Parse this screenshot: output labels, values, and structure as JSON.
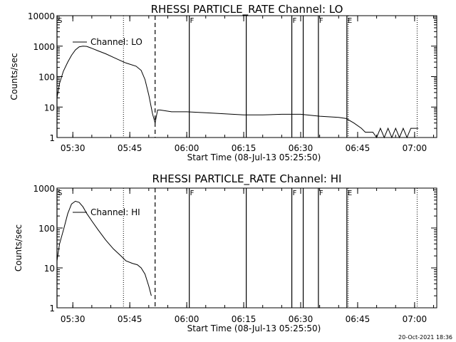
{
  "footer_stamp": "20-Oct-2021 18:36",
  "chart_data": [
    {
      "type": "line",
      "title": "RHESSI PARTICLE_RATE Channel: LO",
      "xlabel": "Start Time (08-Jul-13 05:25:50)",
      "ylabel": "Counts/sec",
      "y_scale": "log",
      "xlim": [
        "05:25:50",
        "07:05:50"
      ],
      "ylim": [
        1,
        10000
      ],
      "x_ticks": [
        "05:30",
        "05:45",
        "06:00",
        "06:15",
        "06:30",
        "06:45",
        "07:00"
      ],
      "y_ticks": [
        "1",
        "10",
        "100",
        "1000",
        "10000"
      ],
      "legend": "Channel: LO",
      "legend_position": "upper-left",
      "event_markers": [
        {
          "label": "S",
          "time": "05:25:50",
          "style": "solid"
        },
        {
          "label": "",
          "time": "05:51:40",
          "style": "dashed"
        },
        {
          "label": "F",
          "time": "06:00:40",
          "style": "solid"
        },
        {
          "label": "",
          "time": "06:15:40",
          "style": "solid"
        },
        {
          "label": "F",
          "time": "06:27:40",
          "style": "solid"
        },
        {
          "label": "",
          "time": "06:30:40",
          "style": "solid"
        },
        {
          "label": "F",
          "time": "06:34:40",
          "style": "solid"
        },
        {
          "label": "E",
          "time": "06:42:10",
          "style": "solid"
        }
      ],
      "dotted_lines": [
        "05:43:20",
        "06:42:30",
        "07:00:40"
      ],
      "series": [
        {
          "name": "Channel: LO",
          "points": [
            [
              "05:25:50",
              20
            ],
            [
              "05:26:30",
              60
            ],
            [
              "05:27:30",
              150
            ],
            [
              "05:28:40",
              300
            ],
            [
              "05:29:40",
              500
            ],
            [
              "05:30:40",
              750
            ],
            [
              "05:31:40",
              950
            ],
            [
              "05:32:40",
              1000
            ],
            [
              "05:33:40",
              980
            ],
            [
              "05:35:00",
              850
            ],
            [
              "05:36:40",
              700
            ],
            [
              "05:38:40",
              560
            ],
            [
              "05:40:40",
              430
            ],
            [
              "05:42:40",
              330
            ],
            [
              "05:44:00",
              280
            ],
            [
              "05:46:40",
              220
            ],
            [
              "05:48:00",
              160
            ],
            [
              "05:49:00",
              80
            ],
            [
              "05:50:00",
              25
            ],
            [
              "05:51:00",
              6
            ],
            [
              "05:51:40",
              3
            ],
            [
              "05:52:00",
              5
            ],
            [
              "05:52:20",
              8
            ],
            [
              "05:53:00",
              8
            ],
            [
              "05:56:00",
              7
            ],
            [
              "06:00:00",
              7
            ],
            [
              "06:05:00",
              6.5
            ],
            [
              "06:10:00",
              6
            ],
            [
              "06:15:00",
              5.5
            ],
            [
              "06:20:00",
              5.5
            ],
            [
              "06:25:00",
              5.8
            ],
            [
              "06:30:00",
              5.8
            ],
            [
              "06:35:00",
              5
            ],
            [
              "06:40:00",
              4.6
            ],
            [
              "06:42:00",
              4.2
            ],
            [
              "06:44:00",
              3
            ],
            [
              "06:46:00",
              2
            ],
            [
              "06:47:00",
              1.5
            ],
            [
              "06:49:00",
              1.5
            ],
            [
              "06:50:00",
              1
            ],
            [
              "06:51:00",
              2
            ],
            [
              "06:52:00",
              1
            ],
            [
              "06:53:00",
              2
            ],
            [
              "06:54:00",
              1
            ],
            [
              "06:55:00",
              2
            ],
            [
              "06:56:00",
              1
            ],
            [
              "06:57:00",
              2
            ],
            [
              "06:58:00",
              1
            ],
            [
              "06:59:00",
              2
            ],
            [
              "07:00:00",
              2
            ],
            [
              "07:01:00",
              2
            ]
          ]
        }
      ]
    },
    {
      "type": "line",
      "title": "RHESSI PARTICLE_RATE Channel: HI",
      "xlabel": "Start Time (08-Jul-13 05:25:50)",
      "ylabel": "Counts/sec",
      "y_scale": "log",
      "xlim": [
        "05:25:50",
        "07:05:50"
      ],
      "ylim": [
        1,
        1000
      ],
      "x_ticks": [
        "05:30",
        "05:45",
        "06:00",
        "06:15",
        "06:30",
        "06:45",
        "07:00"
      ],
      "y_ticks": [
        "1",
        "10",
        "100",
        "1000"
      ],
      "legend": "Channel: HI",
      "legend_position": "upper-left",
      "event_markers": [
        {
          "label": "S",
          "time": "05:25:50",
          "style": "solid"
        },
        {
          "label": "",
          "time": "05:51:40",
          "style": "dashed"
        },
        {
          "label": "F",
          "time": "06:00:40",
          "style": "solid"
        },
        {
          "label": "",
          "time": "06:15:40",
          "style": "solid"
        },
        {
          "label": "F",
          "time": "06:27:40",
          "style": "solid"
        },
        {
          "label": "",
          "time": "06:30:40",
          "style": "solid"
        },
        {
          "label": "F",
          "time": "06:34:40",
          "style": "solid"
        },
        {
          "label": "E",
          "time": "06:42:10",
          "style": "solid"
        }
      ],
      "dotted_lines": [
        "05:43:20",
        "06:42:30",
        "07:00:40"
      ],
      "series": [
        {
          "name": "Channel: HI",
          "points": [
            [
              "05:25:50",
              15
            ],
            [
              "05:26:30",
              40
            ],
            [
              "05:27:40",
              100
            ],
            [
              "05:28:40",
              230
            ],
            [
              "05:29:40",
              400
            ],
            [
              "05:30:40",
              470
            ],
            [
              "05:31:40",
              440
            ],
            [
              "05:32:40",
              340
            ],
            [
              "05:33:40",
              230
            ],
            [
              "05:35:00",
              150
            ],
            [
              "05:36:40",
              90
            ],
            [
              "05:38:40",
              50
            ],
            [
              "05:40:40",
              30
            ],
            [
              "05:42:40",
              20
            ],
            [
              "05:44:00",
              15
            ],
            [
              "05:45:40",
              13
            ],
            [
              "05:47:00",
              12
            ],
            [
              "05:48:00",
              10
            ],
            [
              "05:49:00",
              7
            ],
            [
              "05:50:00",
              3.5
            ],
            [
              "05:50:40",
              2
            ]
          ]
        }
      ]
    }
  ]
}
